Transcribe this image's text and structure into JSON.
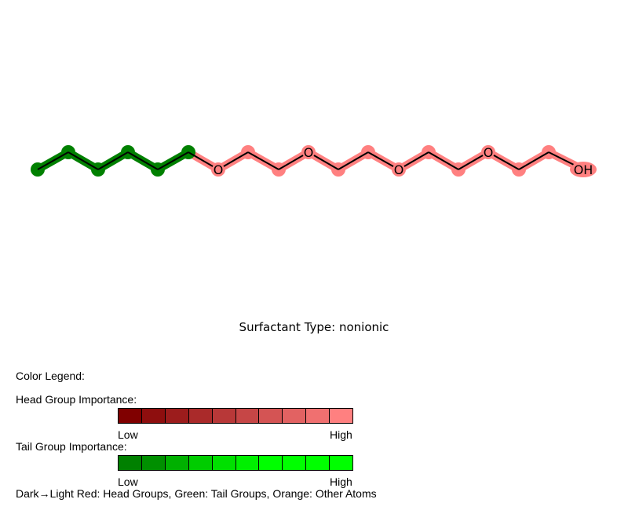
{
  "diagram": {
    "atom_labels": [
      "O",
      "O",
      "O",
      "O",
      "OH"
    ]
  },
  "caption": "Surfactant Type: nonionic",
  "legend": {
    "title": "Color Legend:",
    "head": {
      "label": "Head Group Importance:",
      "low": "Low",
      "high": "High",
      "colors": [
        "#800000",
        "#8e0e0e",
        "#9c1c1c",
        "#aa2a2a",
        "#b83838",
        "#c64646",
        "#d45454",
        "#e26262",
        "#f07070",
        "#ff8080"
      ]
    },
    "tail": {
      "label": "Tail Group Importance:",
      "low": "Low",
      "high": "High",
      "colors": [
        "#008000",
        "#008f00",
        "#00b000",
        "#00cc00",
        "#00e000",
        "#00f000",
        "#00ff00",
        "#00ff00",
        "#00ff00",
        "#00ff00"
      ]
    },
    "footer": "Dark→Light Red: Head Groups, Green: Tail Groups, Orange: Other Atoms"
  },
  "colors": {
    "tail_highlight": "#008000",
    "head_highlight": "#ff8080",
    "bond": "#000000"
  }
}
